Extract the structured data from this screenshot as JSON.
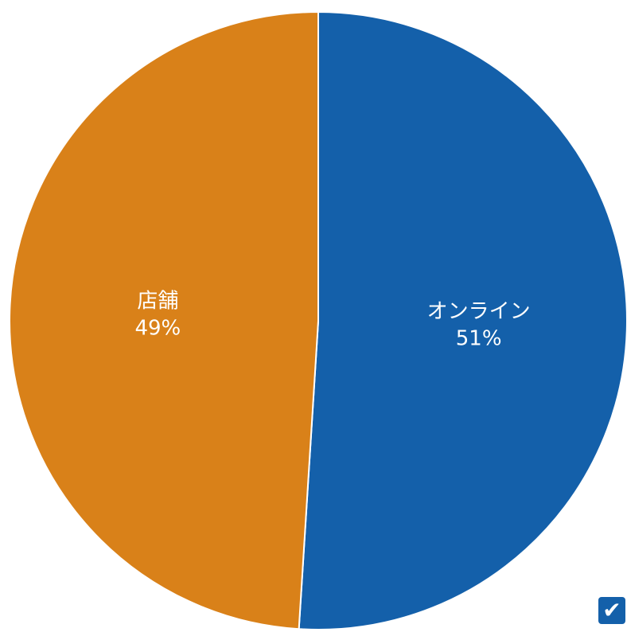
{
  "chart_data": {
    "type": "pie",
    "title": "",
    "slices": [
      {
        "label": "オンライン",
        "value": 51,
        "display": "51%",
        "color": "#1460AA"
      },
      {
        "label": "店舗",
        "value": 49,
        "display": "49%",
        "color": "#D98119"
      }
    ],
    "start_angle_deg": 0,
    "direction": "clockwise",
    "separator_color": "#ffffff"
  },
  "overlay": {
    "badge_icon": "checkmark-icon",
    "badge_glyph": "✔",
    "badge_color": "#1460AA"
  }
}
